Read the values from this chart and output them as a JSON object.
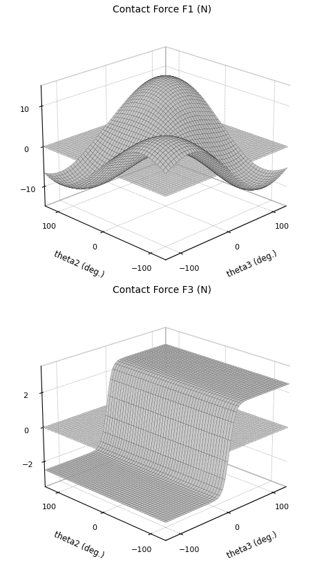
{
  "title1": "Contact Force F1 (N)",
  "title2": "Contact Force F3 (N)",
  "xlabel_left": "theta3 (deg.)",
  "xlabel_right": "theta2 (deg.)",
  "theta_ticks": [
    -100,
    0,
    100
  ],
  "f1_zlim": [
    -15,
    15
  ],
  "f1_zticks": [
    -10,
    0,
    10
  ],
  "f3_zlim": [
    -3.5,
    3.5
  ],
  "f3_zticks": [
    -2,
    0,
    2
  ],
  "n_points": 50,
  "elev1": 22,
  "azim1": 225,
  "elev2": 22,
  "azim2": 225
}
